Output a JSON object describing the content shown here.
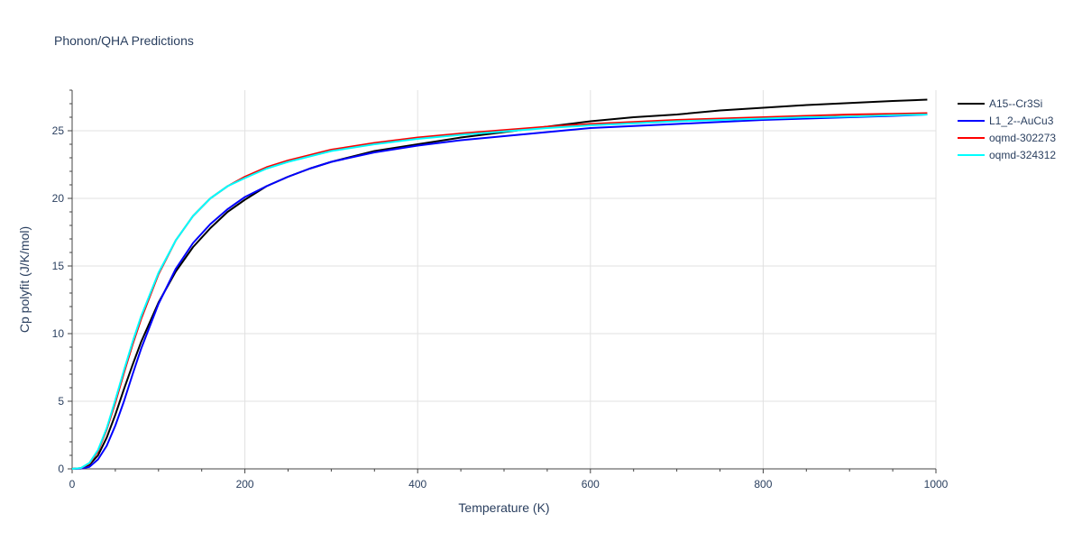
{
  "chart_data": {
    "type": "line",
    "title": "Phonon/QHA Predictions",
    "xlabel": "Temperature (K)",
    "ylabel": "Cp polyfit (J/K/mol)",
    "xlim": [
      0,
      1000
    ],
    "ylim": [
      0,
      28
    ],
    "xticks": [
      0,
      200,
      400,
      600,
      800,
      1000
    ],
    "yticks": [
      0,
      5,
      10,
      15,
      20,
      25
    ],
    "xtick_labels": [
      "0",
      "200",
      "400",
      "600",
      "800",
      "1000"
    ],
    "ytick_labels": [
      "0",
      "5",
      "10",
      "15",
      "20",
      "25"
    ],
    "grid": true,
    "legend_position": "top-right",
    "series": [
      {
        "name": "A15--Cr3Si",
        "color": "#000000",
        "x": [
          0,
          10,
          20,
          30,
          40,
          50,
          60,
          70,
          80,
          100,
          120,
          140,
          160,
          180,
          200,
          225,
          250,
          275,
          300,
          350,
          400,
          450,
          500,
          550,
          600,
          650,
          700,
          750,
          800,
          850,
          900,
          950,
          990
        ],
        "y": [
          0,
          0.05,
          0.3,
          1.0,
          2.3,
          4.0,
          5.9,
          7.7,
          9.4,
          12.3,
          14.6,
          16.4,
          17.8,
          19.0,
          19.9,
          20.9,
          21.6,
          22.2,
          22.7,
          23.5,
          24.0,
          24.5,
          24.9,
          25.3,
          25.7,
          26.0,
          26.2,
          26.5,
          26.7,
          26.9,
          27.05,
          27.2,
          27.3
        ]
      },
      {
        "name": "L1_2--AuCu3",
        "color": "#0000ff",
        "x": [
          0,
          10,
          20,
          30,
          40,
          50,
          60,
          70,
          80,
          100,
          120,
          140,
          160,
          180,
          200,
          225,
          250,
          275,
          300,
          350,
          400,
          450,
          500,
          550,
          600,
          650,
          700,
          750,
          800,
          850,
          900,
          950,
          990
        ],
        "y": [
          0,
          0.02,
          0.15,
          0.7,
          1.7,
          3.2,
          5.0,
          7.0,
          8.9,
          12.2,
          14.8,
          16.7,
          18.1,
          19.2,
          20.1,
          20.9,
          21.6,
          22.2,
          22.7,
          23.4,
          23.9,
          24.3,
          24.6,
          24.9,
          25.2,
          25.35,
          25.5,
          25.65,
          25.8,
          25.9,
          26.0,
          26.1,
          26.2
        ]
      },
      {
        "name": "oqmd-302273",
        "color": "#ff0000",
        "x": [
          0,
          10,
          20,
          30,
          40,
          50,
          60,
          70,
          80,
          100,
          120,
          140,
          160,
          180,
          200,
          225,
          250,
          275,
          300,
          350,
          400,
          450,
          500,
          550,
          600,
          650,
          700,
          750,
          800,
          850,
          900,
          950,
          990
        ],
        "y": [
          0,
          0.05,
          0.4,
          1.3,
          2.9,
          4.9,
          7.1,
          9.2,
          11.1,
          14.4,
          16.9,
          18.7,
          20.0,
          20.9,
          21.6,
          22.3,
          22.8,
          23.2,
          23.6,
          24.1,
          24.5,
          24.8,
          25.05,
          25.3,
          25.5,
          25.65,
          25.8,
          25.9,
          26.0,
          26.1,
          26.2,
          26.25,
          26.3
        ]
      },
      {
        "name": "oqmd-324312",
        "color": "#00ffff",
        "x": [
          0,
          10,
          20,
          30,
          40,
          50,
          60,
          70,
          80,
          100,
          120,
          140,
          160,
          180,
          200,
          225,
          250,
          275,
          300,
          350,
          400,
          450,
          500,
          550,
          600,
          650,
          700,
          750,
          800,
          850,
          900,
          950,
          990
        ],
        "y": [
          0,
          0.06,
          0.45,
          1.4,
          3.0,
          5.1,
          7.3,
          9.4,
          11.3,
          14.5,
          16.9,
          18.7,
          20.0,
          20.9,
          21.5,
          22.2,
          22.7,
          23.1,
          23.5,
          24.0,
          24.4,
          24.7,
          24.95,
          25.2,
          25.4,
          25.55,
          25.7,
          25.8,
          25.9,
          26.0,
          26.05,
          26.15,
          26.2
        ]
      }
    ]
  }
}
